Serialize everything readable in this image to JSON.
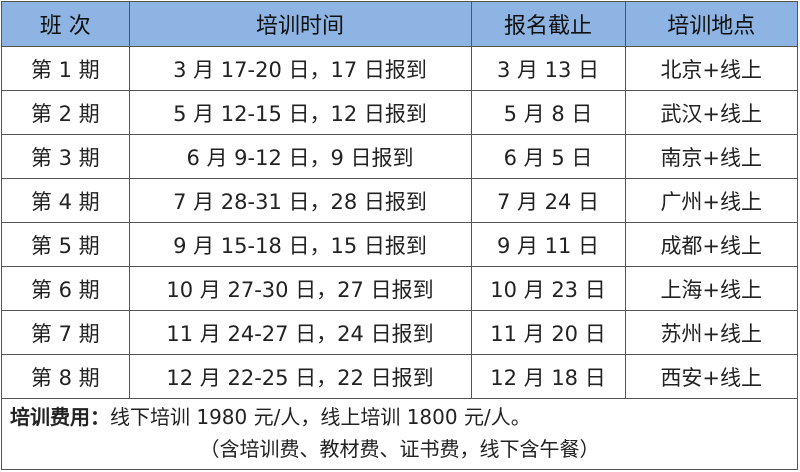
{
  "headers": [
    "班 次",
    "培训时间",
    "报名截止",
    "培训地点"
  ],
  "rows": [
    [
      "第 1 期",
      "3 月 17-20 日，17 日报到",
      "3 月 13 日",
      "北京+线上"
    ],
    [
      "第 2 期",
      "5 月 12-15 日，12 日报到",
      "5 月 8 日",
      "武汉+线上"
    ],
    [
      "第 3 期",
      "6 月 9-12 日，9 日报到",
      "6 月 5 日",
      "南京+线上"
    ],
    [
      "第 4 期",
      "7 月 28-31 日，28 日报到",
      "7 月 24 日",
      "广州+线上"
    ],
    [
      "第 5 期",
      "9 月 15-18 日，15 日报到",
      "9 月 11 日",
      "成都+线上"
    ],
    [
      "第 6 期",
      "10 月 27-30 日，27 日报到",
      "10 月 23 日",
      "上海+线上"
    ],
    [
      "第 7 期",
      "11 月 24-27 日，24 日报到",
      "11 月 20 日",
      "苏州+线上"
    ],
    [
      "第 8 期",
      "12 月 22-25 日，22 日报到",
      "12 月 18 日",
      "西安+线上"
    ]
  ],
  "footer": {
    "label": "培训费用：",
    "line1": "线下培训 1980 元/人，线上培训 1800 元/人。",
    "line2": "（含培训费、教材费、证书费，线下含午餐）"
  },
  "colors": {
    "header_bg": "#8db4e2"
  }
}
